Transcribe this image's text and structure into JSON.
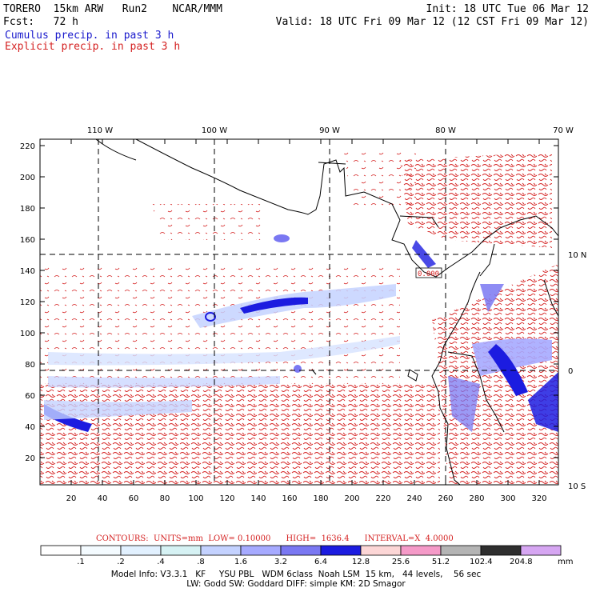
{
  "header": {
    "model": "TORERO  15km ARW   Run2    NCAR/MMM",
    "init": "Init: 18 UTC Tue 06 Mar 12",
    "fcst": "Fcst:   72 h",
    "valid": "Valid: 18 UTC Fri 09 Mar 12 (12 CST Fri 09 Mar 12)",
    "field1": "Cumulus precip. in past 3 h",
    "field2": "Explicit precip. in past 3 h"
  },
  "map": {
    "lon_labels": [
      "110 W",
      "100 W",
      "90 W",
      "80 W",
      "70 W"
    ],
    "lat_labels": [
      "10 N",
      "0",
      "10 S"
    ],
    "x_ticks": [
      "20",
      "40",
      "60",
      "80",
      "100",
      "120",
      "140",
      "160",
      "180",
      "200",
      "220",
      "240",
      "260",
      "280",
      "300",
      "320"
    ],
    "y_ticks": [
      "220",
      "200",
      "180",
      "160",
      "140",
      "120",
      "100",
      "80",
      "60",
      "40",
      "20"
    ],
    "box_label": "0.000",
    "colors": {
      "explicit_contour": "#d42020",
      "cumulus_light": "#c4d2ff",
      "cumulus_mid": "#7a8cff",
      "cumulus_dark": "#1010e0",
      "coast": "#000000",
      "grid": "#000000"
    }
  },
  "footer": {
    "contours": "CONTOURS:  UNITS=mm  LOW= 0.10000      HIGH=  1636.4      INTERVAL=X  4.0000",
    "legend_labels": [
      ".1",
      ".2",
      ".4",
      ".8",
      "1.6",
      "3.2",
      "6.4",
      "12.8",
      "25.6",
      "51.2",
      "102.4",
      "204.8"
    ],
    "legend_unit": "mm",
    "legend_colors": [
      "#ffffff",
      "#f4fbff",
      "#e2f1ff",
      "#d6f2f4",
      "#c4d2ff",
      "#a6aaff",
      "#7a78f2",
      "#1c1ce0",
      "#fcd6d6",
      "#f59ac8",
      "#b4b4b4",
      "#2f2f2f",
      "#d6a6f2"
    ],
    "model_info_1": "Model Info: V3.3.1   KF     YSU PBL   WDM 6class  Noah LSM  15 km,   44 levels,    56 sec",
    "model_info_2": "LW: Godd SW: Goddard DIFF: simple KM: 2D Smagor"
  }
}
